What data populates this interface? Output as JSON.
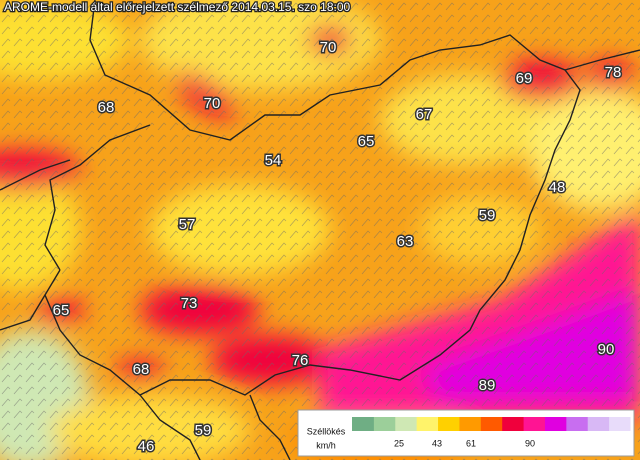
{
  "header": {
    "title": "AROME-modell által előrejelzett szélmező 2014.03.15. szo 18:00"
  },
  "labels": [
    70,
    69,
    78,
    68,
    70,
    67,
    65,
    54,
    48,
    57,
    59,
    63,
    65,
    73,
    90,
    68,
    76,
    89,
    59,
    46
  ],
  "legend": {
    "title": "Széllökés",
    "unit": "km/h",
    "ticks": [
      25,
      43,
      61,
      90
    ],
    "colors": [
      "#6fae84",
      "#9ccf9a",
      "#cfe8b4",
      "#fff36a",
      "#ffd000",
      "#ff9a00",
      "#ff5a00",
      "#f0003c",
      "#ff1493",
      "#e000e0",
      "#c86ef0",
      "#d8b8f5",
      "#e8dcfa"
    ]
  }
}
